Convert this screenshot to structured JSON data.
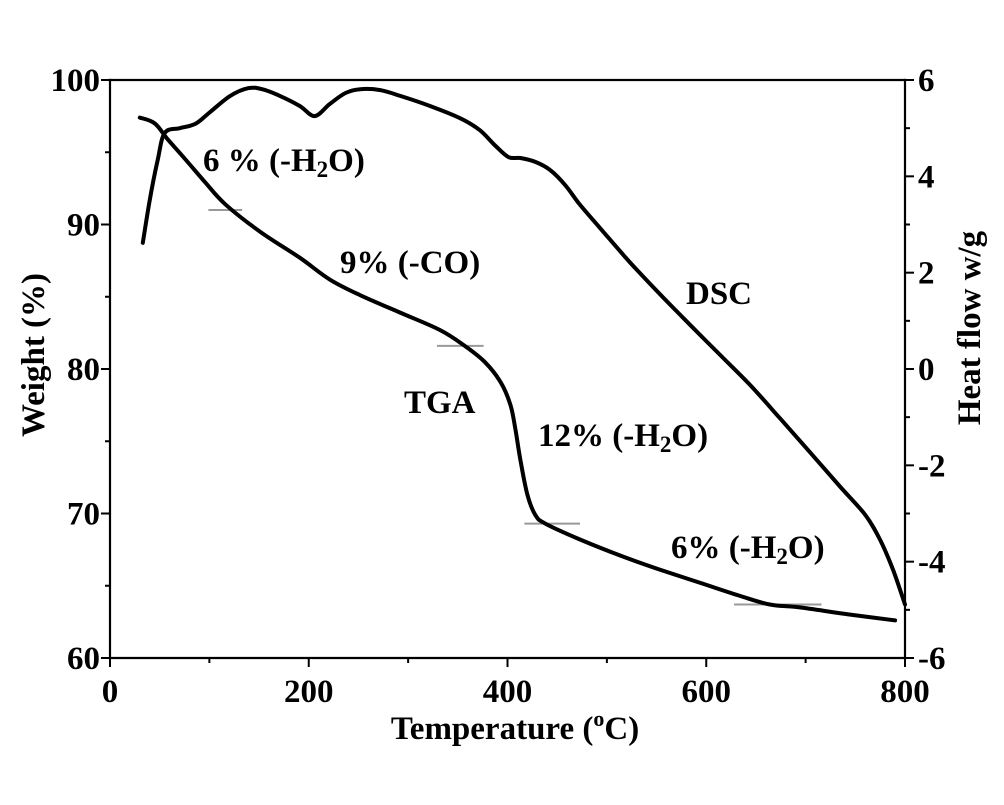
{
  "chart_data": {
    "type": "line",
    "xlabel": {
      "prefix": "Temperature (",
      "sup": "o",
      "suffix": "C)"
    },
    "ylabel": "Weight (%)",
    "y2label": "Heat flow w/g",
    "x_axis": {
      "min": 0,
      "max": 800,
      "ticks": [
        0,
        200,
        400,
        600,
        800
      ]
    },
    "y_axis": {
      "min": 60,
      "max": 100,
      "ticks": [
        100,
        90,
        80,
        70,
        60
      ]
    },
    "y2_axis": {
      "min": -6,
      "max": 6,
      "ticks": [
        6,
        4,
        2,
        0,
        -2,
        -4,
        -6
      ]
    },
    "grid": false,
    "axis_color": "#000000",
    "marker_color": "#999999",
    "series": [
      {
        "name": "TGA",
        "axis": "left",
        "color": "#000000",
        "x": [
          30,
          45,
          58,
          76,
          96,
          116,
          151,
          191,
          221,
          252,
          292,
          332,
          357,
          377,
          393,
          403,
          408,
          413,
          420,
          428,
          438,
          473,
          513,
          554,
          594,
          634,
          664,
          694,
          745,
          790
        ],
        "y": [
          97.4,
          97.0,
          95.9,
          94.5,
          92.9,
          91.4,
          89.5,
          87.7,
          86.2,
          85.1,
          83.9,
          82.7,
          81.6,
          80.5,
          79.1,
          77.5,
          75.8,
          73.7,
          71.3,
          69.9,
          69.3,
          68.2,
          67.1,
          66.1,
          65.2,
          64.3,
          63.7,
          63.5,
          63.0,
          62.6
        ]
      },
      {
        "name": "DSC",
        "axis": "right",
        "color": "#000000",
        "x": [
          33,
          40,
          48,
          55,
          70,
          86,
          101,
          121,
          139,
          153,
          171,
          191,
          206,
          221,
          237,
          252,
          272,
          292,
          322,
          352,
          372,
          387,
          401,
          413,
          428,
          443,
          458,
          473,
          493,
          523,
          554,
          584,
          614,
          644,
          674,
          704,
          735,
          760,
          775,
          788,
          800
        ],
        "y": [
          2.62,
          3.51,
          4.34,
          4.9,
          5.0,
          5.09,
          5.34,
          5.67,
          5.83,
          5.81,
          5.67,
          5.46,
          5.25,
          5.5,
          5.73,
          5.81,
          5.79,
          5.67,
          5.46,
          5.21,
          4.96,
          4.65,
          4.4,
          4.38,
          4.3,
          4.13,
          3.82,
          3.41,
          2.93,
          2.22,
          1.54,
          0.91,
          0.29,
          -0.33,
          -1.02,
          -1.72,
          -2.45,
          -3.03,
          -3.55,
          -4.17,
          -4.89
        ]
      }
    ],
    "annotations": [
      {
        "pre": "6 % (-H",
        "sub": "2",
        "post": "O)"
      },
      {
        "pre": "9% (-CO)"
      },
      {
        "pre": "12% (-H",
        "sub": "2",
        "post": "O)"
      },
      {
        "pre": "6% (-H",
        "sub": "2",
        "post": "O)"
      }
    ],
    "step_markers": [
      {
        "x": [
          99,
          133
        ],
        "y": 91.0
      },
      {
        "x": [
          329,
          376
        ],
        "y": 81.6
      },
      {
        "x": [
          417,
          473
        ],
        "y": 69.3
      },
      {
        "x": [
          628,
          716
        ],
        "y": 63.7
      }
    ]
  }
}
